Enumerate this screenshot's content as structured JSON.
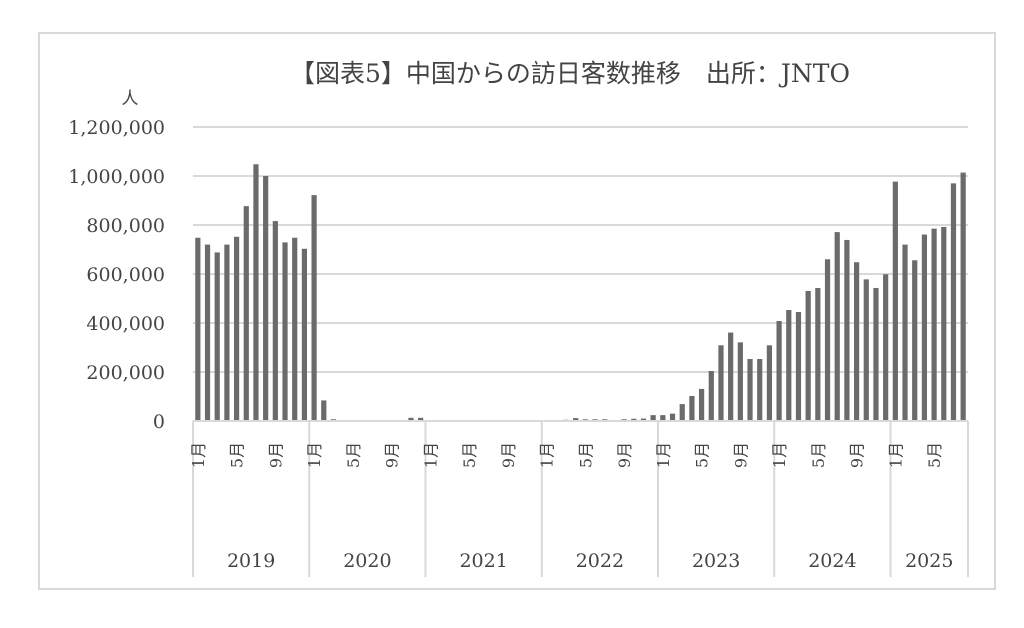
{
  "chart_data": {
    "type": "bar",
    "title": "【図表5】中国からの訪日客数推移　出所：JNTO",
    "ylabel": "人",
    "xlabel": "",
    "ylim": [
      0,
      1200000
    ],
    "yticks": [
      0,
      200000,
      400000,
      600000,
      800000,
      1000000,
      1200000
    ],
    "ytick_labels": [
      "0",
      "200,000",
      "400,000",
      "600,000",
      "800,000",
      "1,000,000",
      "1,200,000"
    ],
    "grid": true,
    "legend": "none",
    "bar_color": "#6b6b6b",
    "years": [
      {
        "label": "2019",
        "months": 12
      },
      {
        "label": "2020",
        "months": 12
      },
      {
        "label": "2021",
        "months": 12
      },
      {
        "label": "2022",
        "months": 12
      },
      {
        "label": "2023",
        "months": 12
      },
      {
        "label": "2024",
        "months": 12
      },
      {
        "label": "2025",
        "months": 8
      }
    ],
    "month_tick_labels": [
      "1月",
      "5月",
      "9月"
    ],
    "series": [
      {
        "name": "中国からの訪日客数",
        "values": [
          748000,
          720000,
          688000,
          720000,
          752000,
          877000,
          1048000,
          1000000,
          816000,
          729000,
          748000,
          703000,
          922000,
          84000,
          7000,
          200,
          100,
          200,
          300,
          300,
          500,
          1500,
          13000,
          13000,
          4000,
          300,
          400,
          300,
          500,
          600,
          800,
          700,
          500,
          600,
          700,
          800,
          1000,
          1200,
          5000,
          12000,
          7000,
          7000,
          7000,
          4000,
          7000,
          9000,
          10000,
          24000,
          24000,
          30000,
          69000,
          102000,
          131000,
          204000,
          309000,
          361000,
          321000,
          253000,
          253000,
          309000,
          408000,
          453000,
          445000,
          531000,
          543000,
          660000,
          771000,
          739000,
          648000,
          578000,
          543000,
          599000,
          977000,
          720000,
          656000,
          761000,
          785000,
          792000,
          970000,
          1014000
        ]
      }
    ]
  }
}
